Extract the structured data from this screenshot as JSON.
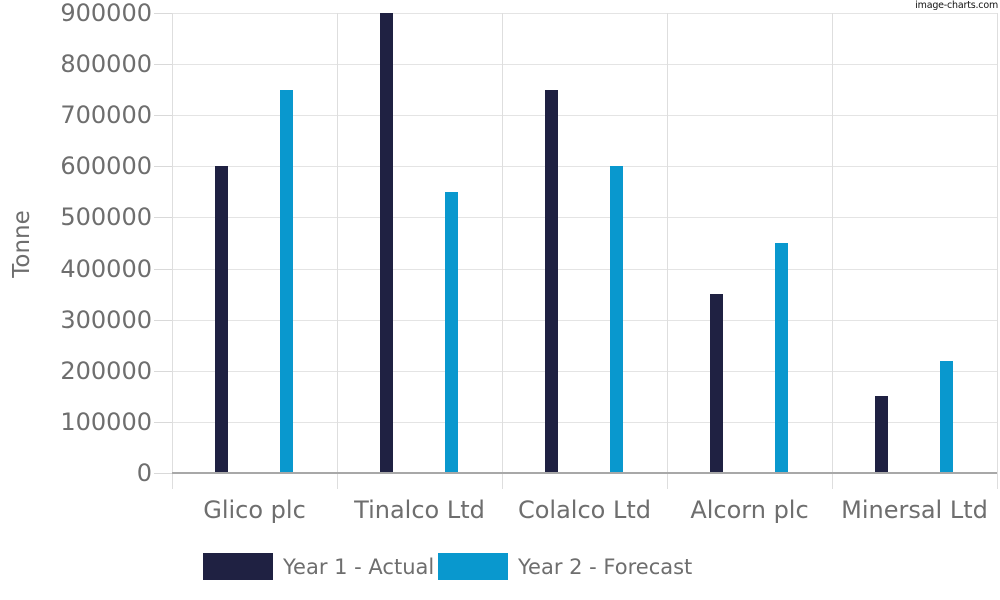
{
  "watermark": {
    "text": "image-charts.com"
  },
  "chart_data": {
    "type": "bar",
    "title": "",
    "xlabel": "",
    "ylabel": "Tonne",
    "categories": [
      "Glico plc",
      "Tinalco Ltd",
      "Colalco Ltd",
      "Alcorn plc",
      "Minersal Ltd"
    ],
    "series": [
      {
        "name": "Year 1 - Actual",
        "color": "#1f2142",
        "values": [
          600000,
          900000,
          750000,
          350000,
          150000
        ]
      },
      {
        "name": "Year 2 - Forecast",
        "color": "#0998ce",
        "values": [
          750000,
          550000,
          600000,
          450000,
          220000
        ]
      }
    ],
    "ylim": [
      0,
      900000
    ],
    "ytick_step": 100000,
    "ytick_labels": [
      "0",
      "100000",
      "200000",
      "300000",
      "400000",
      "500000",
      "600000",
      "700000",
      "800000",
      "900000"
    ],
    "grid": true,
    "legend_position": "bottom",
    "axis_text_color": "#6e6e6e",
    "gridline_color": "#e4e4e4",
    "baseline_color": "#a8a8a8"
  }
}
